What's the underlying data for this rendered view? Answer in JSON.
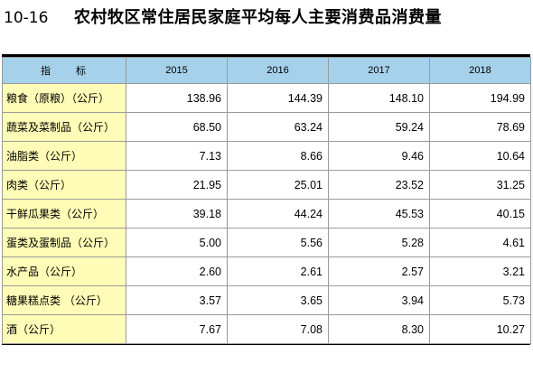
{
  "title": {
    "code": "10-16",
    "text": "农村牧区常住居民家庭平均每人主要消费品消费量"
  },
  "table": {
    "header": {
      "label": "指　　标",
      "years": [
        "2015",
        "2016",
        "2017",
        "2018"
      ]
    },
    "rows": [
      {
        "label": "粮食（原粮）（公斤）",
        "values": [
          "138.96",
          "144.39",
          "148.10",
          "194.99"
        ]
      },
      {
        "label": "蔬菜及菜制品（公斤）",
        "values": [
          "68.50",
          "63.24",
          "59.24",
          "78.69"
        ]
      },
      {
        "label": "油脂类（公斤）",
        "values": [
          "7.13",
          "8.66",
          "9.46",
          "10.64"
        ]
      },
      {
        "label": "肉类（公斤）",
        "values": [
          "21.95",
          "25.01",
          "23.52",
          "31.25"
        ]
      },
      {
        "label": "干鲜瓜果类（公斤）",
        "values": [
          "39.18",
          "44.24",
          "45.53",
          "40.15"
        ]
      },
      {
        "label": "蛋类及蛋制品（公斤）",
        "values": [
          "5.00",
          "5.56",
          "5.28",
          "4.61"
        ]
      },
      {
        "label": "水产品（公斤）",
        "values": [
          "2.60",
          "2.61",
          "2.57",
          "3.21"
        ]
      },
      {
        "label": "糖果糕点类 （公斤）",
        "values": [
          "3.57",
          "3.65",
          "3.94",
          "5.73"
        ]
      },
      {
        "label": "酒（公斤）",
        "values": [
          "7.67",
          "7.08",
          "8.30",
          "10.27"
        ]
      }
    ]
  },
  "colors": {
    "header_bg": "#a6d1ea",
    "label_bg": "#fefcb6",
    "grid": "#9a9a9a"
  }
}
